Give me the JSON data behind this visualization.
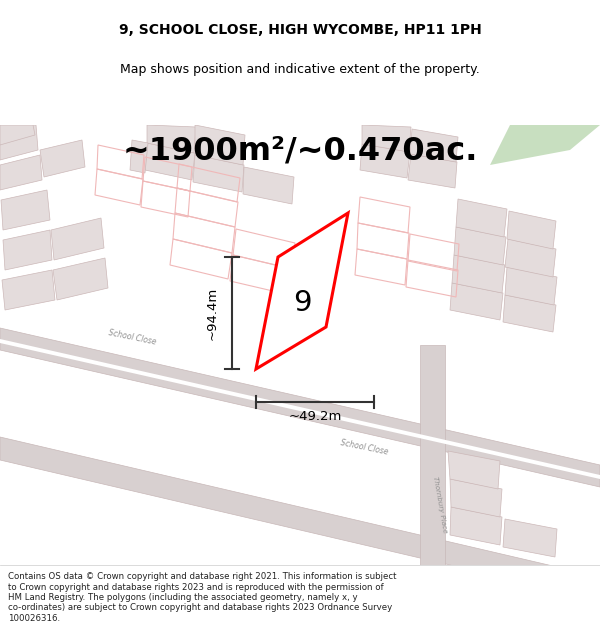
{
  "title": "9, SCHOOL CLOSE, HIGH WYCOMBE, HP11 1PH",
  "subtitle": "Map shows position and indicative extent of the property.",
  "area_text": "~1900m²/~0.470ac.",
  "label_number": "9",
  "dim_width": "~49.2m",
  "dim_height": "~94.4m",
  "footnote_lines": [
    "Contains OS data © Crown copyright and database right 2021. This information is subject",
    "to Crown copyright and database rights 2023 and is reproduced with the permission of",
    "HM Land Registry. The polygons (including the associated geometry, namely x, y",
    "co-ordinates) are subject to Crown copyright and database rights 2023 Ordnance Survey",
    "100026316."
  ],
  "map_bg": "#f2eeee",
  "title_color": "#000000",
  "road_fill": "#d8d0d0",
  "road_edge": "#c8b8b8",
  "building_fill": "#e4dcdc",
  "building_outline": "#ccb8b8",
  "red_outline_color": "#f0b8b8",
  "highlight_color": "#ff0000",
  "dim_color": "#333333",
  "footnote_color": "#222222",
  "green_patch_color": "#c8dfc0"
}
